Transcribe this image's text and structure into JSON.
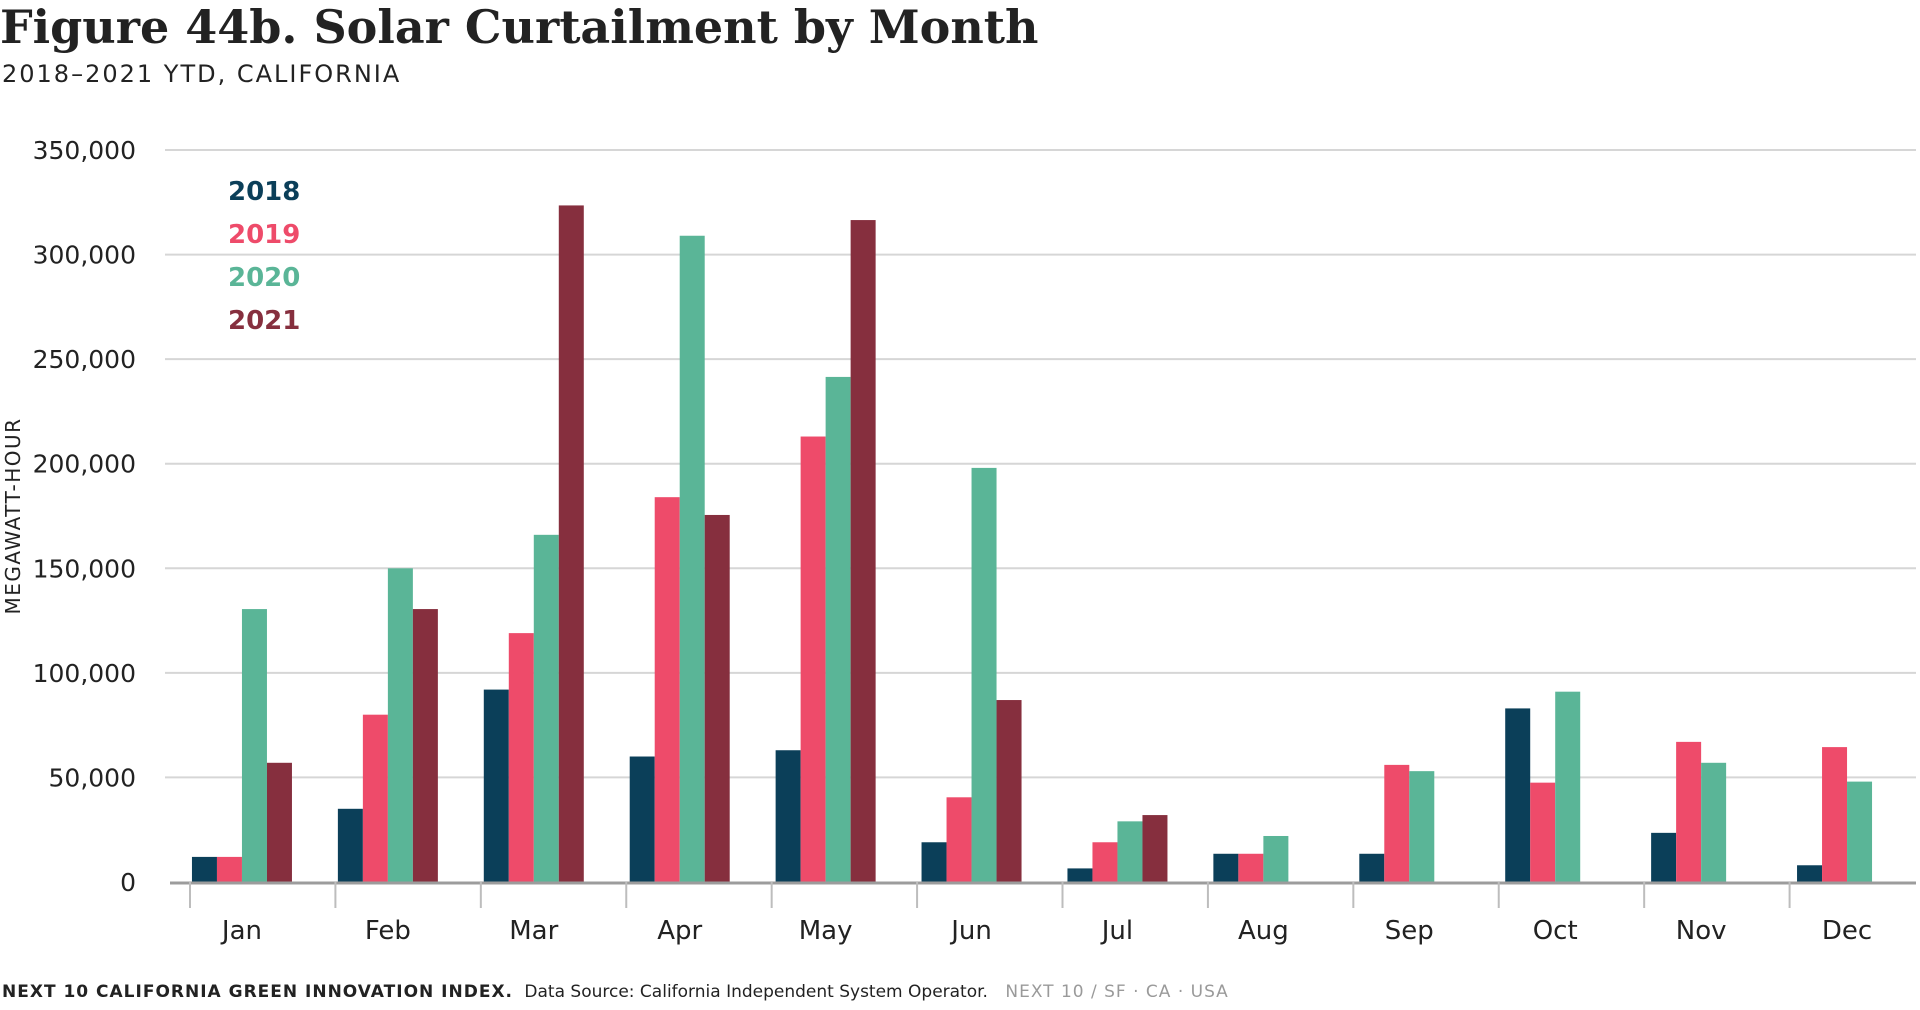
{
  "header": {
    "title": "Figure 44b. Solar Curtailment by Month",
    "subtitle": "2018–2021 YTD, CALIFORNIA"
  },
  "footer": {
    "org": "NEXT 10 CALIFORNIA GREEN INNOVATION INDEX.",
    "source": "Data Source: California Independent System Operator.",
    "brand": "NEXT 10  /  SF · CA · USA"
  },
  "chart_data": {
    "type": "bar",
    "title": "Figure 44b. Solar Curtailment by Month",
    "subtitle": "2018–2021 YTD, CALIFORNIA",
    "xlabel": "",
    "ylabel": "MEGAWATT-HOUR",
    "ylim": [
      0,
      350000
    ],
    "yticks": [
      0,
      50000,
      100000,
      150000,
      200000,
      250000,
      300000,
      350000
    ],
    "ytick_labels": [
      "0",
      "50,000",
      "100,000",
      "150,000",
      "200,000",
      "250,000",
      "300,000",
      "350,000"
    ],
    "grid": true,
    "legend_position": "top-left",
    "categories": [
      "Jan",
      "Feb",
      "Mar",
      "Apr",
      "May",
      "Jun",
      "Jul",
      "Aug",
      "Sep",
      "Oct",
      "Nov",
      "Dec"
    ],
    "series": [
      {
        "name": "2018",
        "color": "#0b3f59",
        "values": [
          12000,
          35000,
          92000,
          60000,
          63000,
          19000,
          6500,
          13500,
          13500,
          83000,
          23500,
          8000
        ]
      },
      {
        "name": "2019",
        "color": "#ee4b6a",
        "values": [
          12000,
          80000,
          119000,
          184000,
          213000,
          40500,
          19000,
          13500,
          56000,
          47500,
          67000,
          64500
        ]
      },
      {
        "name": "2020",
        "color": "#5ab597",
        "values": [
          130500,
          150000,
          166000,
          309000,
          241500,
          198000,
          29000,
          22000,
          53000,
          91000,
          57000,
          48000
        ]
      },
      {
        "name": "2021",
        "color": "#862f3e",
        "values": [
          57000,
          130500,
          323500,
          175500,
          316500,
          87000,
          32000,
          null,
          null,
          null,
          null,
          null
        ]
      }
    ]
  }
}
